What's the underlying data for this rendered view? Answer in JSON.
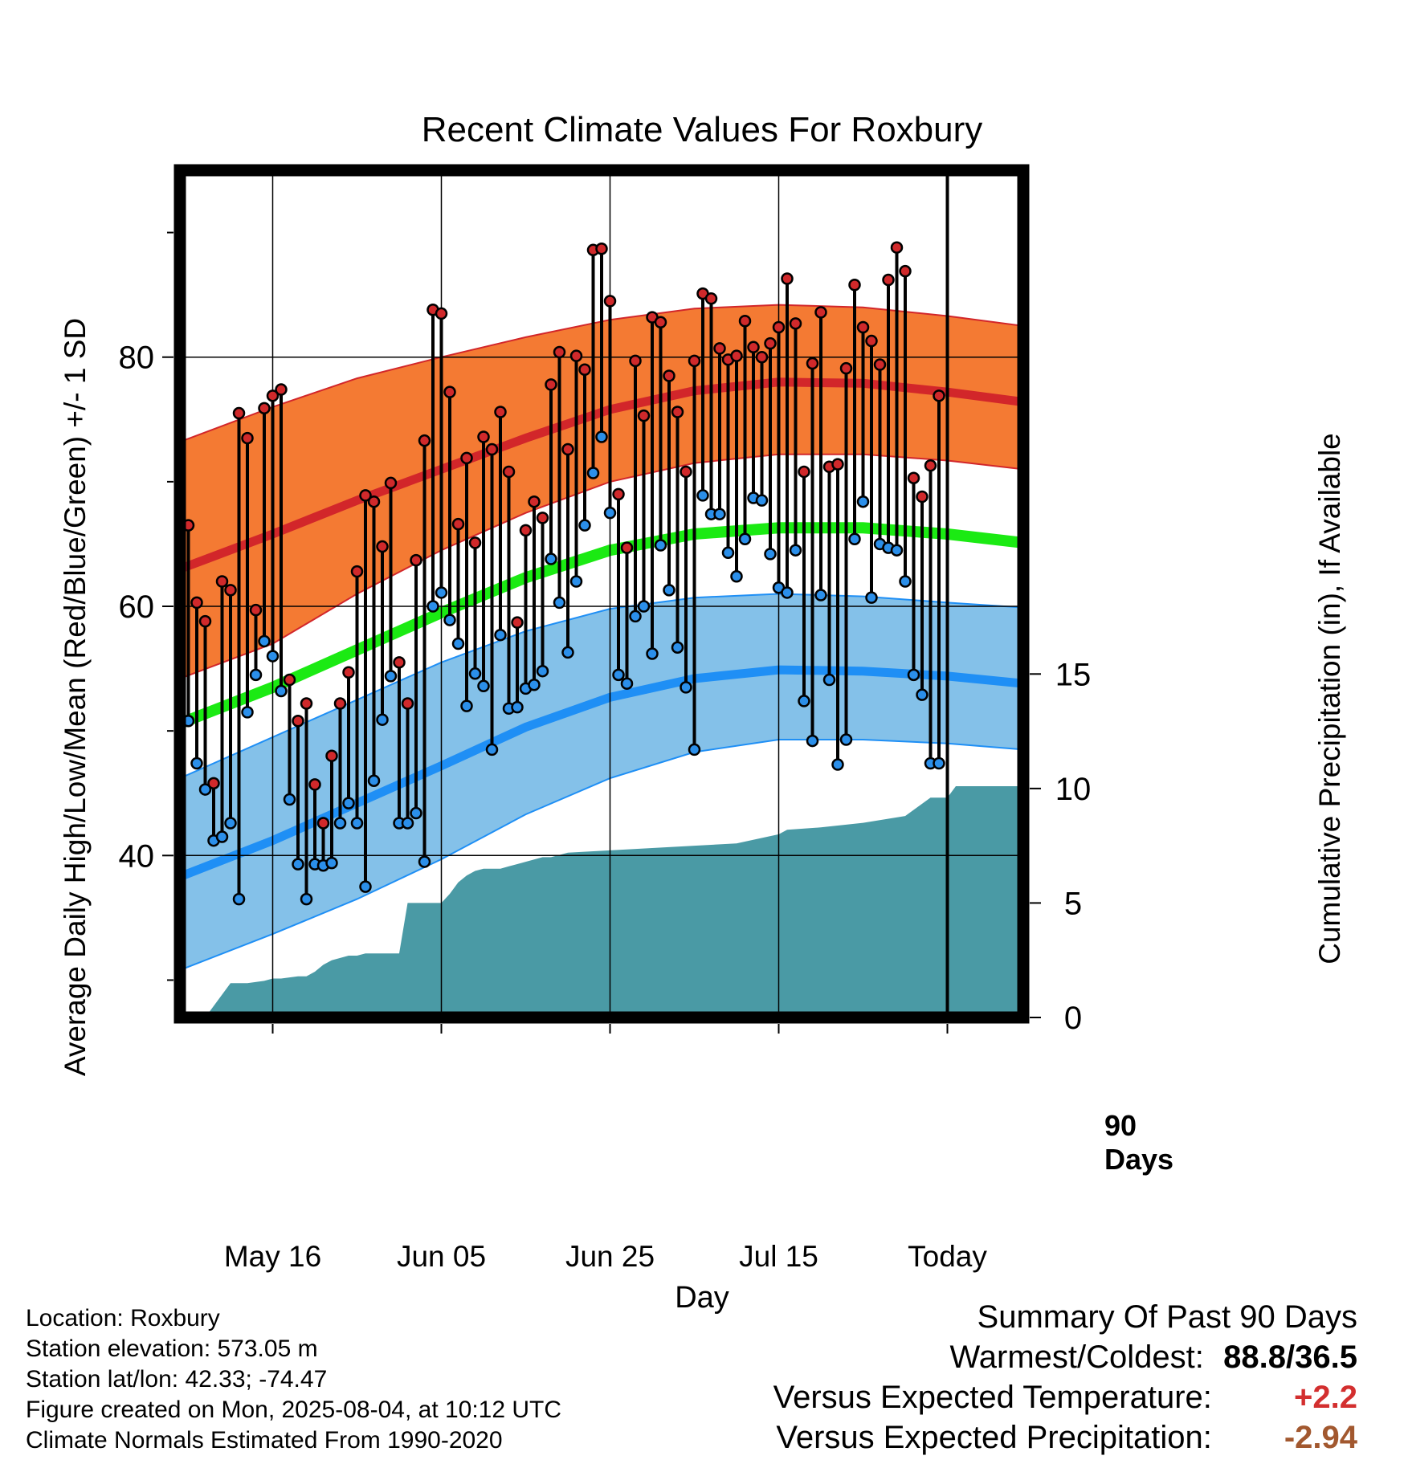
{
  "chart_data": {
    "type": "line",
    "title": "Recent Climate Values For Roxbury",
    "xlabel": "Day",
    "ylabel_left": "Average Daily High/Low/Mean (Red/Blue/Green) +/- 1 SD",
    "ylabel_right": "Cumulative Precipitation (in), If Available",
    "xlim": [
      -11,
      89
    ],
    "ylim": [
      27,
      95
    ],
    "precip_ylim": [
      0,
      37
    ],
    "x_ticks": [
      {
        "x": 0,
        "label": "May 16"
      },
      {
        "x": 20,
        "label": "Jun 05"
      },
      {
        "x": 40,
        "label": "Jun 25"
      },
      {
        "x": 60,
        "label": "Jul 15"
      },
      {
        "x": 80,
        "label": "Today"
      }
    ],
    "y_ticks_left": [
      40,
      60,
      80
    ],
    "y_ticks_right": [
      0,
      5,
      10,
      15
    ],
    "today_marker": {
      "x": 80,
      "label_line1": "90",
      "label_line2": "Days"
    },
    "normals_x": [
      -11,
      0,
      10,
      20,
      30,
      40,
      50,
      60,
      70,
      80,
      89
    ],
    "normal_high": [
      63.0,
      65.8,
      68.5,
      71.0,
      73.5,
      75.8,
      77.3,
      78.0,
      77.9,
      77.2,
      76.4
    ],
    "normal_high_upper": [
      73.2,
      76.0,
      78.3,
      80.0,
      81.6,
      83.0,
      83.9,
      84.2,
      84.0,
      83.3,
      82.5
    ],
    "normal_high_lower": [
      54.2,
      57.0,
      61.0,
      64.5,
      67.5,
      70.0,
      71.5,
      72.2,
      72.2,
      71.7,
      71.0
    ],
    "normal_mean": [
      50.6,
      53.5,
      56.5,
      59.5,
      62.3,
      64.5,
      65.8,
      66.3,
      66.3,
      65.8,
      65.1
    ],
    "normal_low": [
      38.3,
      41.2,
      44.2,
      47.2,
      50.3,
      52.7,
      54.2,
      54.9,
      54.8,
      54.4,
      53.8
    ],
    "normal_low_upper": [
      46.2,
      49.5,
      52.5,
      55.5,
      58.0,
      59.8,
      60.7,
      61.0,
      60.8,
      60.3,
      59.9
    ],
    "normal_low_lower": [
      30.8,
      33.7,
      36.5,
      39.7,
      43.3,
      46.2,
      48.3,
      49.3,
      49.3,
      49.0,
      48.5
    ],
    "daily_x": [
      -10,
      -9,
      -8,
      -7,
      -6,
      -5,
      -4,
      -3,
      -2,
      -1,
      0,
      1,
      2,
      3,
      4,
      5,
      6,
      7,
      8,
      9,
      10,
      11,
      12,
      13,
      14,
      15,
      16,
      17,
      18,
      19,
      20,
      21,
      22,
      23,
      24,
      25,
      26,
      27,
      28,
      29,
      30,
      31,
      32,
      33,
      34,
      35,
      36,
      37,
      38,
      39,
      40,
      41,
      42,
      43,
      44,
      45,
      46,
      47,
      48,
      49,
      50,
      51,
      52,
      53,
      54,
      55,
      56,
      57,
      58,
      59,
      60,
      61,
      62,
      63,
      64,
      65,
      66,
      67,
      68,
      69,
      70,
      71,
      72,
      73,
      74,
      75,
      76,
      77,
      78,
      79
    ],
    "daily_high": [
      66.5,
      60.3,
      58.8,
      45.8,
      62.0,
      61.3,
      75.5,
      73.5,
      59.7,
      75.9,
      76.9,
      77.4,
      54.1,
      50.8,
      52.2,
      45.7,
      42.6,
      48.0,
      52.2,
      54.7,
      62.8,
      68.9,
      68.4,
      64.8,
      69.9,
      55.5,
      52.2,
      63.7,
      73.3,
      83.8,
      83.5,
      77.2,
      66.6,
      71.9,
      65.1,
      73.6,
      72.6,
      75.6,
      70.8,
      58.7,
      66.1,
      68.4,
      67.1,
      77.8,
      80.4,
      72.6,
      80.1,
      79.0,
      88.6,
      88.7,
      84.5,
      69.0,
      64.7,
      79.7,
      75.3,
      83.2,
      82.8,
      78.5,
      75.6,
      70.8,
      79.7,
      85.1,
      84.7,
      80.7,
      79.8,
      80.1,
      82.9,
      80.8,
      80.0,
      81.1,
      82.4,
      86.3,
      82.7,
      70.8,
      79.5,
      83.6,
      71.2,
      71.4,
      79.1,
      85.8,
      82.4,
      81.3,
      79.4,
      86.2,
      88.8,
      86.9,
      70.3,
      68.8,
      71.3,
      76.9
    ],
    "daily_low": [
      50.8,
      47.4,
      45.3,
      41.2,
      41.5,
      42.6,
      36.5,
      51.5,
      54.5,
      57.2,
      56.0,
      53.2,
      44.5,
      39.3,
      36.5,
      39.3,
      39.2,
      39.4,
      42.6,
      44.2,
      42.6,
      37.5,
      46.0,
      50.9,
      54.4,
      42.6,
      42.6,
      43.4,
      39.5,
      60.0,
      61.1,
      58.9,
      57.0,
      52.0,
      54.6,
      53.6,
      48.5,
      57.7,
      51.8,
      51.9,
      53.4,
      53.7,
      54.8,
      63.8,
      60.3,
      56.3,
      62.0,
      66.5,
      70.7,
      73.6,
      67.5,
      54.5,
      53.8,
      59.2,
      60.0,
      56.2,
      64.9,
      61.3,
      56.7,
      53.5,
      48.5,
      68.9,
      67.4,
      67.4,
      64.3,
      62.4,
      65.4,
      68.7,
      68.5,
      64.2,
      61.5,
      61.1,
      64.5,
      52.4,
      49.2,
      60.9,
      54.1,
      47.3,
      49.3,
      65.4,
      68.4,
      60.7,
      65.0,
      64.7,
      64.5,
      62.0,
      54.5,
      52.9,
      47.4,
      47.4
    ],
    "precip_x": [
      -11,
      -8,
      -5,
      -3,
      -1,
      0,
      1,
      3,
      4,
      5,
      6,
      7,
      8,
      9,
      10,
      11,
      12,
      13,
      14,
      15,
      16,
      17,
      18,
      19,
      20,
      21,
      22,
      23,
      24,
      25,
      26,
      27,
      28,
      29,
      30,
      31,
      32,
      33,
      34,
      35,
      40,
      45,
      50,
      55,
      60,
      61,
      65,
      70,
      75,
      78,
      79,
      80,
      81,
      89
    ],
    "precip_cum": [
      0,
      0,
      1.5,
      1.5,
      1.6,
      1.7,
      1.7,
      1.8,
      1.8,
      2.0,
      2.3,
      2.5,
      2.6,
      2.7,
      2.7,
      2.8,
      2.8,
      2.8,
      2.8,
      2.8,
      5.0,
      5.0,
      5.0,
      5.0,
      5.0,
      5.4,
      5.9,
      6.2,
      6.4,
      6.5,
      6.5,
      6.5,
      6.6,
      6.7,
      6.8,
      6.9,
      7.0,
      7.0,
      7.1,
      7.2,
      7.3,
      7.4,
      7.5,
      7.6,
      8.0,
      8.2,
      8.3,
      8.5,
      8.8,
      9.6,
      9.6,
      9.6,
      10.1,
      10.1
    ]
  },
  "info": {
    "location": "Location: Roxbury",
    "elevation": "Station elevation: 573.05 m",
    "latlon": "Station lat/lon: 42.33; -74.47",
    "created": "Figure created on Mon, 2025-08-04, at 10:12 UTC",
    "normals": "Climate Normals Estimated From 1990-2020"
  },
  "summary": {
    "heading": "Summary Of Past 90 Days",
    "warm_cold_label": "Warmest/Coldest:",
    "warm_cold_value": "88.8/36.5",
    "temp_label": "Versus Expected Temperature:",
    "temp_value": "+2.2",
    "precip_label": "Versus Expected Precipitation:",
    "precip_value": "-2.94"
  },
  "colors": {
    "high_band": "#f47a33",
    "high_line": "#d2262a",
    "low_band": "#84c1e9",
    "low_line": "#1f8ff5",
    "mean_line": "#1bea13",
    "precip_fill": "#4a9aa5",
    "high_marker": "#d0292b",
    "low_marker": "#2b8fea",
    "temp_value": "#d32f2f",
    "precip_value": "#a2582f"
  }
}
